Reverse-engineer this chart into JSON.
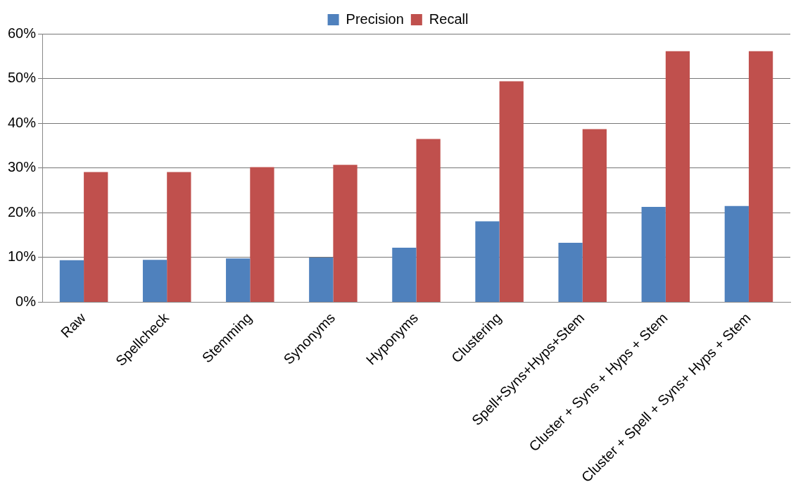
{
  "chart_data": {
    "type": "bar",
    "categories": [
      "Raw",
      "Spellcheck",
      "Stemming",
      "Synonyms",
      "Hyponyms",
      "Clustering",
      "Spell+Syns+Hyps+Stem",
      "Cluster + Syns + Hyps + Stem",
      "Cluster + Spell + Syns+ Hyps + Stem"
    ],
    "series": [
      {
        "name": "Precision",
        "color": "#4f81bd",
        "values": [
          9.4,
          9.5,
          9.8,
          10.0,
          12.2,
          18.1,
          13.3,
          21.3,
          21.5
        ]
      },
      {
        "name": "Recall",
        "color": "#c0504d",
        "values": [
          29.1,
          29.1,
          30.2,
          30.7,
          36.5,
          49.4,
          38.7,
          56.1,
          56.1
        ]
      }
    ],
    "ylim": [
      0,
      60
    ],
    "yticks": [
      {
        "value": 0,
        "label": "0%"
      },
      {
        "value": 10,
        "label": "10%"
      },
      {
        "value": 20,
        "label": "20%"
      },
      {
        "value": 30,
        "label": "30%"
      },
      {
        "value": 40,
        "label": "40%"
      },
      {
        "value": 50,
        "label": "50%"
      },
      {
        "value": 60,
        "label": "60%"
      }
    ],
    "grid": "y",
    "legend": "top"
  }
}
